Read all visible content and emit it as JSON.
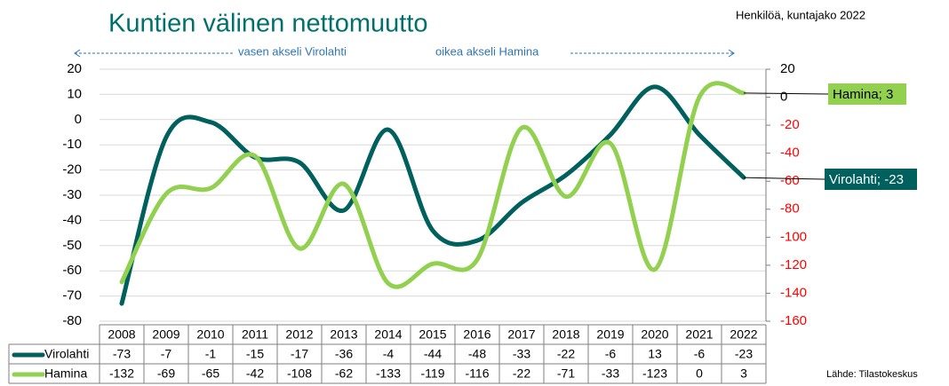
{
  "chart_data": {
    "type": "line",
    "title": "Kuntien välinen nettomuutto",
    "subtitle": "Henkilöä, kuntajako 2022",
    "left_axis_note": "vasen akseli Virolahti",
    "right_axis_note": "oikea akseli Hamina",
    "source": "Lähde: Tilastokeskus",
    "categories": [
      "2008",
      "2009",
      "2010",
      "2011",
      "2012",
      "2013",
      "2014",
      "2015",
      "2016",
      "2017",
      "2018",
      "2019",
      "2020",
      "2021",
      "2022"
    ],
    "series": [
      {
        "name": "Virolahti",
        "color": "#00605e",
        "values": [
          -73,
          -7,
          -1,
          -15,
          -17,
          -36,
          -4,
          -44,
          -48,
          -33,
          -22,
          -6,
          13,
          -6,
          -23
        ],
        "callout": "Virolahti; -23",
        "callout_text_color": "#ffffff"
      },
      {
        "name": "Hamina",
        "color": "#92d050",
        "axis": "y2",
        "values": [
          -132,
          -69,
          -65,
          -42,
          -108,
          -62,
          -133,
          -119,
          -116,
          -22,
          -71,
          -33,
          -123,
          0,
          3
        ],
        "callout": "Hamina; 3",
        "callout_text_color": "#000000"
      }
    ],
    "ylim": [
      -80,
      20
    ],
    "yticks": [
      -80,
      -70,
      -60,
      -50,
      -40,
      -30,
      -20,
      -10,
      0,
      10,
      20
    ],
    "y2lim": [
      -160,
      20
    ],
    "y2ticks": [
      -160,
      -140,
      -120,
      -100,
      -80,
      -60,
      -40,
      -20,
      0,
      20
    ],
    "y2_negative_color": "#ff0000",
    "grid": true,
    "smooth": true,
    "data_table": true
  }
}
